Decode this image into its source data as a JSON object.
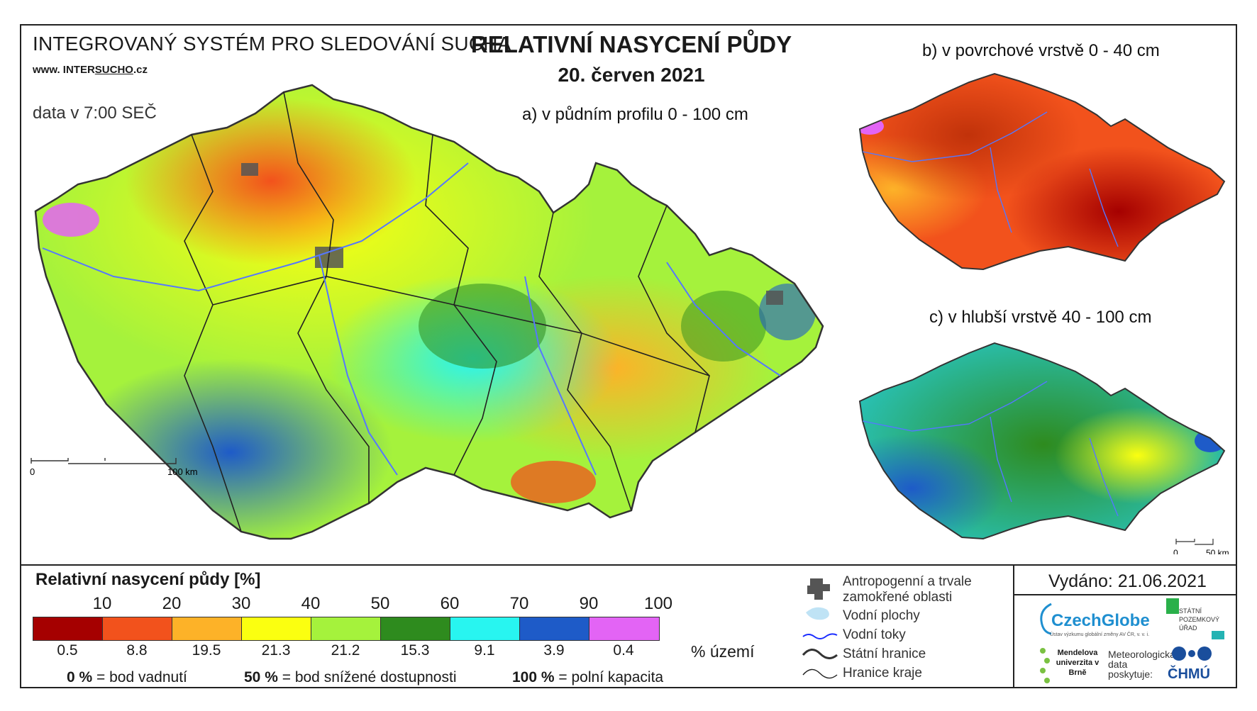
{
  "header": {
    "system_title": "INTEGROVANÝ SYSTÉM PRO SLEDOVÁNÍ SUCHA",
    "url_prefix": "www. INTER",
    "url_underlined": "SUCHO",
    "url_suffix": ".cz",
    "time_note": "data v 7:00 SEČ",
    "main_title": "RELATIVNÍ NASYCENÍ PŮDY",
    "date": "20. červen 2021"
  },
  "maps": {
    "a_caption": "a) v půdním profilu 0 - 100 cm",
    "b_caption": "b) v povrchové vrstvě 0 - 40 cm",
    "c_caption": "c) v hlubší vrstvě 40 - 100 cm",
    "scale_main_zero": "0",
    "scale_main_label": "100 km",
    "scale_small_zero": "0",
    "scale_small_label": "50 km"
  },
  "legend": {
    "title": "Relativní nasycení půdy [%]",
    "thresholds": [
      "10",
      "20",
      "30",
      "40",
      "50",
      "60",
      "70",
      "90",
      "100"
    ],
    "colors": [
      "#a50000",
      "#f2521c",
      "#fdb228",
      "#fbff10",
      "#a5f23c",
      "#2e8b1e",
      "#28f5f0",
      "#1e5bc8",
      "#e364f5"
    ],
    "area_percent": [
      "0.5",
      "8.8",
      "19.5",
      "21.3",
      "21.2",
      "15.3",
      "9.1",
      "3.9",
      "0.4"
    ],
    "area_unit": "% území",
    "notes": [
      {
        "value": "0 %",
        "label": "= bod vadnutí"
      },
      {
        "value": "50 %",
        "label": "= bod snížené dostupnosti"
      },
      {
        "value": "100 %",
        "label": "= polní kapacita"
      }
    ]
  },
  "symbols": {
    "anthropogenic": "Antropogenní a trvale zamokřené oblasti",
    "water_bodies": "Vodní plochy",
    "rivers": "Vodní toky",
    "state_border": "Státní hranice",
    "region_border": "Hranice kraje"
  },
  "footer": {
    "issued": "Vydáno: 21.06.2021",
    "czechglobe": "CzechGlobe",
    "czechglobe_sub": "Ústav výzkumu globální změny AV ČR, v. v. i.",
    "spu": "STÁTNÍ POZEMKOVÝ ÚŘAD",
    "mendel": "Mendelova univerzita v Brně",
    "meteo": "Meteorologická data poskytuje:",
    "chmu": "ČHMÚ"
  }
}
